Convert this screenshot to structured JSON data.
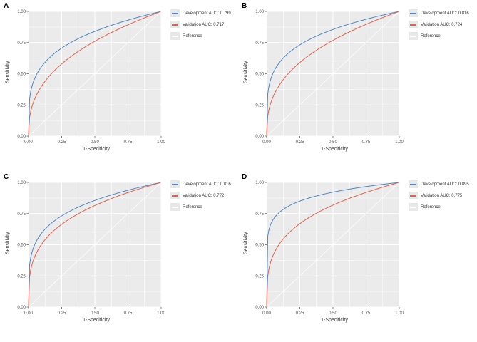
{
  "figure": {
    "background": "#ffffff",
    "panel_bg": "#EBEBEB",
    "grid_color": "#FFFFFF",
    "tick_text_color": "#4D4D4D",
    "axis_text_color": "#333333"
  },
  "chart_data": [
    {
      "type": "line",
      "panel": "A",
      "xlabel": "1-Specificity",
      "ylabel": "Sensitivity",
      "xlim": [
        0,
        1
      ],
      "ylim": [
        0,
        1
      ],
      "xticks": [
        "0.00",
        "0.25",
        "0.50",
        "0.75",
        "1.00"
      ],
      "yticks": [
        "0.00",
        "0.25",
        "0.50",
        "0.75",
        "1.00"
      ],
      "grid": true,
      "legend_position": "right",
      "series": [
        {
          "name": "Development AUC: 0.799",
          "auc": 0.799,
          "color": "#4F86C6",
          "kind": "development"
        },
        {
          "name": "Validation AUC: 0.717",
          "auc": 0.717,
          "color": "#E2614C",
          "kind": "validation"
        },
        {
          "name": "Reference",
          "auc": 0.5,
          "color": "#FFFFFF",
          "kind": "reference"
        }
      ]
    },
    {
      "type": "line",
      "panel": "B",
      "xlabel": "1-Specificity",
      "ylabel": "Sensitivity",
      "xlim": [
        0,
        1
      ],
      "ylim": [
        0,
        1
      ],
      "xticks": [
        "0.00",
        "0.25",
        "0.50",
        "0.75",
        "1.00"
      ],
      "yticks": [
        "0.00",
        "0.25",
        "0.50",
        "0.75",
        "1.00"
      ],
      "grid": true,
      "legend_position": "right",
      "series": [
        {
          "name": "Development AUC: 0.816",
          "auc": 0.816,
          "color": "#4F86C6",
          "kind": "development"
        },
        {
          "name": "Validation AUC: 0.724",
          "auc": 0.724,
          "color": "#E2614C",
          "kind": "validation"
        },
        {
          "name": "Reference",
          "auc": 0.5,
          "color": "#FFFFFF",
          "kind": "reference"
        }
      ]
    },
    {
      "type": "line",
      "panel": "C",
      "xlabel": "1-Specificity",
      "ylabel": "Sensitivity",
      "xlim": [
        0,
        1
      ],
      "ylim": [
        0,
        1
      ],
      "xticks": [
        "0.00",
        "0.25",
        "0.50",
        "0.75",
        "1.00"
      ],
      "yticks": [
        "0.00",
        "0.25",
        "0.50",
        "0.75",
        "1.00"
      ],
      "grid": true,
      "legend_position": "right",
      "series": [
        {
          "name": "Development AUC: 0.816",
          "auc": 0.816,
          "color": "#4F86C6",
          "kind": "development"
        },
        {
          "name": "Validation AUC: 0.772",
          "auc": 0.772,
          "color": "#E2614C",
          "kind": "validation"
        },
        {
          "name": "Reference",
          "auc": 0.5,
          "color": "#FFFFFF",
          "kind": "reference"
        }
      ]
    },
    {
      "type": "line",
      "panel": "D",
      "xlabel": "1-Specificity",
      "ylabel": "Sensitivity",
      "xlim": [
        0,
        1
      ],
      "ylim": [
        0,
        1
      ],
      "xticks": [
        "0.00",
        "0.25",
        "0.50",
        "0.75",
        "1.00"
      ],
      "yticks": [
        "0.00",
        "0.25",
        "0.50",
        "0.75",
        "1.00"
      ],
      "grid": true,
      "legend_position": "right",
      "series": [
        {
          "name": "Development AUC: 0.895",
          "auc": 0.895,
          "color": "#4F86C6",
          "kind": "development"
        },
        {
          "name": "Validation AUC: 0.775",
          "auc": 0.775,
          "color": "#E2614C",
          "kind": "validation"
        },
        {
          "name": "Reference",
          "auc": 0.5,
          "color": "#FFFFFF",
          "kind": "reference"
        }
      ]
    }
  ]
}
